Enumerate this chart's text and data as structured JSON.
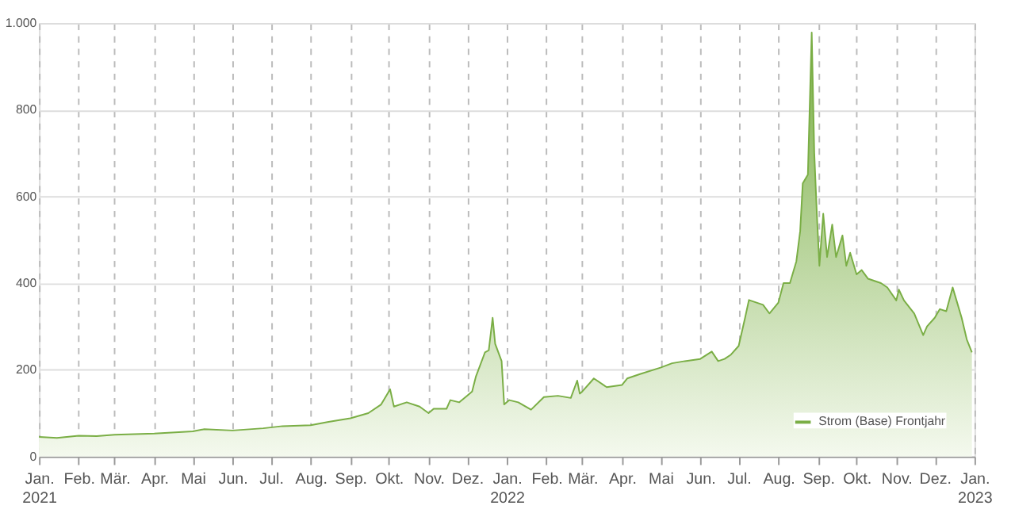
{
  "chart_data": {
    "type": "area",
    "legend": "bottom right",
    "grid": true,
    "marker": "none",
    "line_style": "solid",
    "xlim": [
      "2021-01-01",
      "2023-01-01"
    ],
    "xticks": [
      {
        "value": "2021-01-01",
        "label": "Jan.\n2021"
      },
      {
        "value": "2021-02-01",
        "label": "Feb."
      },
      {
        "value": "2021-03-01",
        "label": "Mär."
      },
      {
        "value": "2021-04-01",
        "label": "Apr."
      },
      {
        "value": "2021-05-01",
        "label": "Mai"
      },
      {
        "value": "2021-06-01",
        "label": "Jun."
      },
      {
        "value": "2021-07-01",
        "label": "Jul."
      },
      {
        "value": "2021-08-01",
        "label": "Aug."
      },
      {
        "value": "2021-09-01",
        "label": "Sep."
      },
      {
        "value": "2021-10-01",
        "label": "Okt."
      },
      {
        "value": "2021-11-01",
        "label": "Nov."
      },
      {
        "value": "2021-12-01",
        "label": "Dez."
      },
      {
        "value": "2022-01-01",
        "label": "Jan.\n2022"
      },
      {
        "value": "2022-02-01",
        "label": "Feb."
      },
      {
        "value": "2022-03-01",
        "label": "Mär."
      },
      {
        "value": "2022-04-01",
        "label": "Apr."
      },
      {
        "value": "2022-05-01",
        "label": "Mai"
      },
      {
        "value": "2022-06-01",
        "label": "Jun."
      },
      {
        "value": "2022-07-01",
        "label": "Jul."
      },
      {
        "value": "2022-08-01",
        "label": "Aug."
      },
      {
        "value": "2022-09-01",
        "label": "Sep."
      },
      {
        "value": "2022-10-01",
        "label": "Okt."
      },
      {
        "value": "2022-11-01",
        "label": "Nov."
      },
      {
        "value": "2022-12-01",
        "label": "Dez."
      },
      {
        "value": "2023-01-01",
        "label": "Jan.\n2023"
      }
    ],
    "ylim": [
      0,
      1000
    ],
    "yticks": [
      0,
      200,
      400,
      600,
      800,
      {
        "value": 1000,
        "label": "1.000"
      }
    ],
    "series": [
      {
        "name": "Strom (Base) Frontjahr",
        "color": "#7aae45",
        "x": [
          "2021-01-01",
          "2021-01-15",
          "2021-02-01",
          "2021-02-15",
          "2021-03-01",
          "2021-04-01",
          "2021-05-01",
          "2021-05-10",
          "2021-06-01",
          "2021-06-25",
          "2021-07-10",
          "2021-08-01",
          "2021-08-15",
          "2021-09-01",
          "2021-09-15",
          "2021-09-25",
          "2021-10-02",
          "2021-10-05",
          "2021-10-15",
          "2021-10-25",
          "2021-11-01",
          "2021-11-05",
          "2021-11-15",
          "2021-11-18",
          "2021-11-25",
          "2021-12-01",
          "2021-12-05",
          "2021-12-08",
          "2021-12-15",
          "2021-12-18",
          "2021-12-21",
          "2021-12-23",
          "2021-12-28",
          "2021-12-30",
          "2022-01-03",
          "2022-01-10",
          "2022-01-20",
          "2022-01-30",
          "2022-02-10",
          "2022-02-20",
          "2022-02-25",
          "2022-02-27",
          "2022-03-01",
          "2022-03-10",
          "2022-03-20",
          "2022-04-01",
          "2022-04-05",
          "2022-04-15",
          "2022-05-01",
          "2022-05-10",
          "2022-05-20",
          "2022-06-01",
          "2022-06-10",
          "2022-06-15",
          "2022-06-20",
          "2022-06-25",
          "2022-07-01",
          "2022-07-06",
          "2022-07-09",
          "2022-07-20",
          "2022-07-25",
          "2022-08-01",
          "2022-08-05",
          "2022-08-10",
          "2022-08-15",
          "2022-08-18",
          "2022-08-20",
          "2022-08-24",
          "2022-08-27",
          "2022-08-29",
          "2022-08-31",
          "2022-09-02",
          "2022-09-05",
          "2022-09-08",
          "2022-09-12",
          "2022-09-15",
          "2022-09-20",
          "2022-09-23",
          "2022-09-26",
          "2022-10-01",
          "2022-10-05",
          "2022-10-10",
          "2022-10-20",
          "2022-10-25",
          "2022-11-01",
          "2022-11-03",
          "2022-11-07",
          "2022-11-15",
          "2022-11-22",
          "2022-11-25",
          "2022-12-01",
          "2022-12-05",
          "2022-12-10",
          "2022-12-15",
          "2022-12-18",
          "2022-12-22",
          "2022-12-26",
          "2022-12-30"
        ],
        "values": [
          45,
          43,
          48,
          47,
          50,
          53,
          58,
          63,
          60,
          65,
          70,
          72,
          80,
          88,
          100,
          120,
          155,
          115,
          125,
          115,
          100,
          110,
          110,
          130,
          125,
          140,
          150,
          185,
          240,
          245,
          320,
          260,
          220,
          120,
          130,
          125,
          108,
          137,
          140,
          135,
          175,
          145,
          150,
          180,
          160,
          165,
          180,
          190,
          205,
          215,
          220,
          225,
          242,
          220,
          225,
          235,
          255,
          320,
          361,
          350,
          330,
          355,
          400,
          400,
          450,
          520,
          630,
          650,
          978,
          700,
          560,
          440,
          560,
          460,
          535,
          460,
          510,
          440,
          470,
          420,
          430,
          410,
          400,
          390,
          360,
          385,
          360,
          330,
          280,
          300,
          320,
          340,
          335,
          390,
          360,
          320,
          270,
          240
        ]
      }
    ]
  }
}
